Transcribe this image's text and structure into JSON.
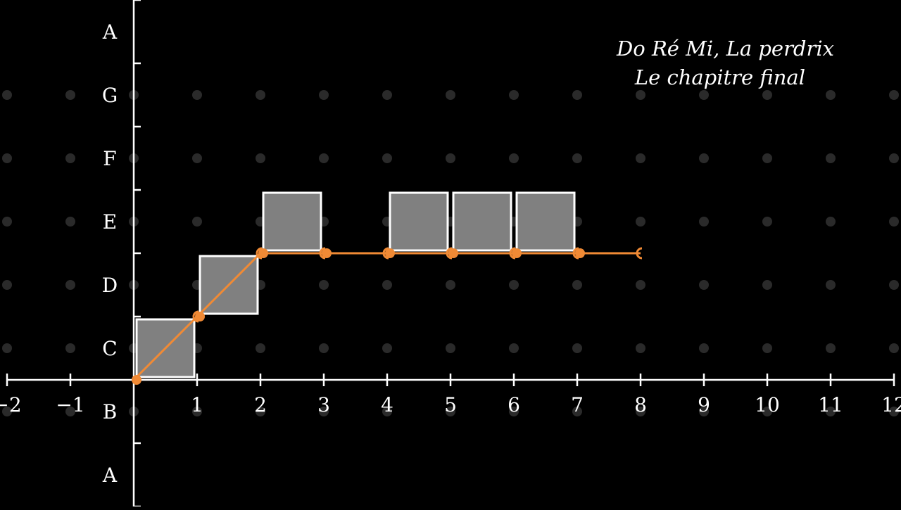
{
  "chart_data": {
    "type": "step-diagram",
    "title_lines": [
      "Do Ré Mi, La perdrix",
      "Le chapitre final"
    ],
    "xlim": [
      -2,
      12
    ],
    "x_ticks": [
      -2,
      -1,
      1,
      2,
      3,
      4,
      5,
      6,
      7,
      8,
      9,
      10,
      11,
      12
    ],
    "x_tick_labels": [
      "−2",
      "−1",
      "1",
      "2",
      "3",
      "4",
      "5",
      "6",
      "7",
      "8",
      "9",
      "10",
      "11",
      "12"
    ],
    "y_note_ticks": [
      {
        "y": -1.5,
        "label": "A"
      },
      {
        "y": -0.5,
        "label": "B"
      },
      {
        "y": 0.5,
        "label": "C"
      },
      {
        "y": 1.5,
        "label": "D"
      },
      {
        "y": 2.5,
        "label": "E"
      },
      {
        "y": 3.5,
        "label": "F"
      },
      {
        "y": 4.5,
        "label": "G"
      },
      {
        "y": 5.5,
        "label": "A"
      }
    ],
    "note_blocks": [
      {
        "x": 0,
        "y": 0,
        "width": 1,
        "height": 1
      },
      {
        "x": 1,
        "y": 1,
        "width": 1,
        "height": 1
      },
      {
        "x": 2,
        "y": 2,
        "width": 1,
        "height": 1
      },
      {
        "x": 4,
        "y": 2,
        "width": 1,
        "height": 1
      },
      {
        "x": 5,
        "y": 2,
        "width": 1,
        "height": 1
      },
      {
        "x": 6,
        "y": 2,
        "width": 1,
        "height": 1
      }
    ],
    "segments": [
      {
        "x1": 0,
        "y1": 0,
        "x2": 1,
        "y2": 1
      },
      {
        "x1": 1,
        "y1": 1,
        "x2": 2,
        "y2": 2
      },
      {
        "x1": 2,
        "y1": 2,
        "x2": 3,
        "y2": 2
      },
      {
        "x1": 3,
        "y1": 2,
        "x2": 4,
        "y2": 2
      },
      {
        "x1": 4,
        "y1": 2,
        "x2": 5,
        "y2": 2
      },
      {
        "x1": 5,
        "y1": 2,
        "x2": 6,
        "y2": 2
      },
      {
        "x1": 6,
        "y1": 2,
        "x2": 7,
        "y2": 2
      },
      {
        "x1": 7,
        "y1": 2,
        "x2": 8,
        "y2": 2
      }
    ],
    "colors": {
      "background": "#000000",
      "axis": "#ffffff",
      "grid_dot": "#2a2a2a",
      "block_fill": "#808080",
      "block_stroke": "#ffffff",
      "path": "#f08a35"
    }
  }
}
